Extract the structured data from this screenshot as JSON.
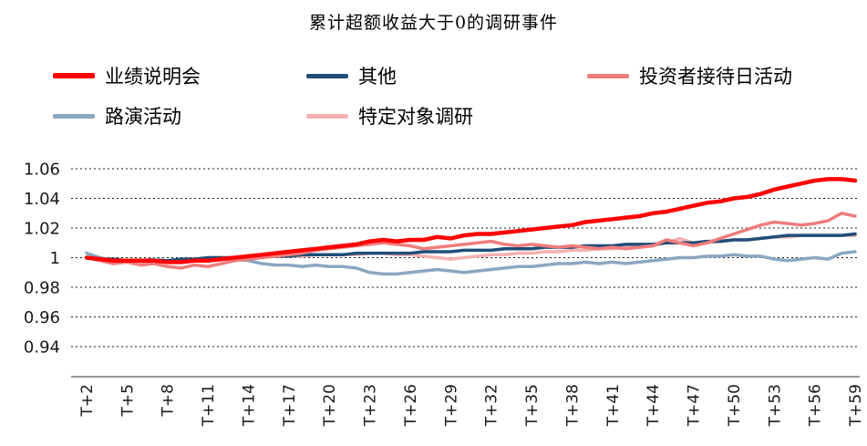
{
  "title": "累计超额收益大于0的调研事件",
  "chart_data": {
    "type": "line",
    "title": "累计超额收益大于0的调研事件",
    "xlabel": "",
    "ylabel": "",
    "x_start": 2,
    "x_end": 59,
    "x_tick_step": 3,
    "x_tick_labels": [
      "T+2",
      "T+5",
      "T+8",
      "T+11",
      "T+14",
      "T+17",
      "T+20",
      "T+23",
      "T+26",
      "T+29",
      "T+32",
      "T+35",
      "T+38",
      "T+41",
      "T+44",
      "T+47",
      "T+50",
      "T+53",
      "T+56",
      "T+59"
    ],
    "ylim": [
      0.94,
      1.06
    ],
    "y_ticks": [
      1.06,
      1.04,
      1.02,
      1,
      0.98,
      0.96,
      0.94
    ],
    "y_tick_labels": [
      "1.06",
      "1.04",
      "1.02",
      "1",
      "0.98",
      "0.96",
      "0.94"
    ],
    "grid": "dashed-horizontal",
    "legend_position": "top",
    "draw_order": [
      3,
      4,
      1,
      2,
      0
    ],
    "series": [
      {
        "name": "业绩说明会",
        "color": "#ff0000",
        "stroke_width": 4.5,
        "values": [
          1.0,
          0.999,
          0.998,
          0.998,
          0.998,
          0.998,
          0.997,
          0.997,
          0.998,
          0.998,
          0.999,
          1.0,
          1.001,
          1.002,
          1.003,
          1.004,
          1.005,
          1.006,
          1.007,
          1.008,
          1.009,
          1.011,
          1.012,
          1.011,
          1.012,
          1.012,
          1.014,
          1.013,
          1.015,
          1.016,
          1.016,
          1.017,
          1.018,
          1.019,
          1.02,
          1.021,
          1.022,
          1.024,
          1.025,
          1.026,
          1.027,
          1.028,
          1.03,
          1.031,
          1.033,
          1.035,
          1.037,
          1.038,
          1.04,
          1.041,
          1.043,
          1.046,
          1.048,
          1.05,
          1.052,
          1.053,
          1.053,
          1.052
        ]
      },
      {
        "name": "其他",
        "color": "#1f4e79",
        "stroke_width": 3.5,
        "values": [
          1.0,
          0.999,
          0.999,
          0.998,
          0.998,
          0.998,
          0.998,
          0.999,
          0.999,
          1.0,
          1.0,
          1.0,
          1.001,
          1.001,
          1.001,
          1.001,
          1.002,
          1.002,
          1.002,
          1.002,
          1.003,
          1.003,
          1.003,
          1.003,
          1.003,
          1.004,
          1.004,
          1.004,
          1.005,
          1.005,
          1.005,
          1.006,
          1.006,
          1.006,
          1.007,
          1.007,
          1.007,
          1.008,
          1.008,
          1.008,
          1.009,
          1.009,
          1.009,
          1.01,
          1.01,
          1.01,
          1.011,
          1.011,
          1.012,
          1.012,
          1.013,
          1.014,
          1.015,
          1.015,
          1.015,
          1.015,
          1.015,
          1.016
        ]
      },
      {
        "name": "投资者接待日活动",
        "color": "#f07c7c",
        "stroke_width": 3.5,
        "values": [
          1.0,
          0.998,
          0.996,
          0.997,
          0.995,
          0.996,
          0.994,
          0.993,
          0.995,
          0.994,
          0.996,
          0.998,
          0.999,
          1.0,
          1.001,
          1.002,
          1.003,
          1.005,
          1.006,
          1.007,
          1.008,
          1.009,
          1.01,
          1.009,
          1.008,
          1.006,
          1.007,
          1.008,
          1.009,
          1.01,
          1.011,
          1.009,
          1.008,
          1.009,
          1.008,
          1.007,
          1.008,
          1.007,
          1.006,
          1.007,
          1.006,
          1.007,
          1.008,
          1.012,
          1.01,
          1.008,
          1.01,
          1.013,
          1.016,
          1.019,
          1.022,
          1.024,
          1.023,
          1.022,
          1.023,
          1.025,
          1.03,
          1.028
        ]
      },
      {
        "name": "路演活动",
        "color": "#8ba7c0",
        "stroke_width": 3.5,
        "values": [
          1.003,
          1.0,
          0.998,
          0.997,
          0.998,
          0.999,
          0.998,
          0.998,
          0.999,
          0.999,
          1.0,
          0.999,
          0.998,
          0.996,
          0.995,
          0.995,
          0.994,
          0.995,
          0.994,
          0.994,
          0.993,
          0.99,
          0.989,
          0.989,
          0.99,
          0.991,
          0.992,
          0.991,
          0.99,
          0.991,
          0.992,
          0.993,
          0.994,
          0.994,
          0.995,
          0.996,
          0.996,
          0.997,
          0.996,
          0.997,
          0.996,
          0.997,
          0.998,
          0.999,
          1.0,
          1.0,
          1.001,
          1.001,
          1.002,
          1.001,
          1.001,
          0.999,
          0.998,
          0.999,
          1.0,
          0.999,
          1.003,
          1.004
        ]
      },
      {
        "name": "特定对象调研",
        "color": "#f5b1b1",
        "stroke_width": 3.5,
        "values": [
          1.0,
          0.999,
          0.998,
          0.998,
          0.997,
          0.998,
          0.997,
          0.998,
          0.998,
          0.999,
          0.999,
          1.0,
          1.0,
          1.0,
          1.001,
          1.001,
          1.001,
          1.002,
          1.002,
          1.002,
          1.002,
          1.003,
          1.003,
          1.002,
          1.002,
          1.001,
          1.0,
          0.999,
          1.0,
          1.001,
          1.002,
          1.002,
          1.003,
          1.003,
          1.004,
          1.004,
          1.005,
          1.005,
          1.006,
          1.006,
          1.007,
          1.007,
          1.008,
          1.01,
          1.013,
          1.01,
          1.01,
          1.011,
          1.012,
          1.012,
          1.013,
          1.014,
          1.014,
          1.015,
          1.015,
          1.015,
          1.015,
          1.015
        ]
      }
    ]
  }
}
